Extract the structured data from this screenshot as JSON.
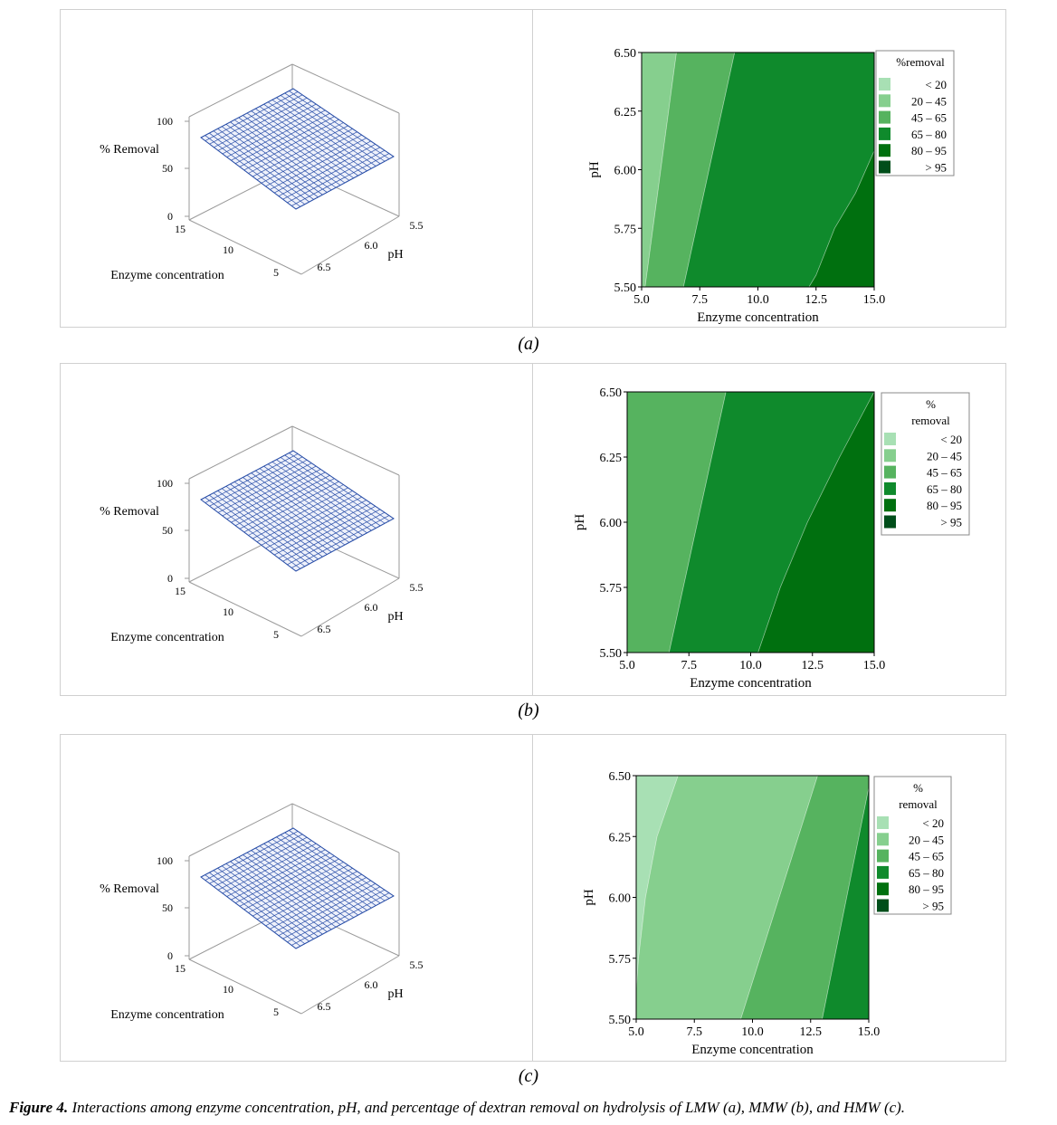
{
  "figure": {
    "caption_label": "Figure 4.",
    "caption_text": "Interactions among enzyme concentration, pH, and percentage of dextran removal on hydrolysis of LMW (a), MMW (b), and HMW (c)."
  },
  "colors": {
    "band_lt20": "#a8e0b4",
    "band_20_45": "#86cf8e",
    "band_45_65": "#56b35f",
    "band_65_80": "#0f8a2c",
    "band_80_95": "#00700f",
    "band_gt95": "#004e1a",
    "mesh": "#2a4fa8"
  },
  "chart_data": [
    {
      "panel": "(a)",
      "type": "contour",
      "surface": {
        "zlabel": "% Removal",
        "xlabel": "Enzyme concentration",
        "ylabel": "pH",
        "z_ticks": [
          "100",
          "50",
          "0"
        ],
        "x_ticks": [
          "15",
          "10",
          "5"
        ],
        "y_ticks": [
          "5.5",
          "6.0",
          "6.5"
        ]
      },
      "xlabel": "Enzyme concentration",
      "ylabel": "pH",
      "xlim": [
        5,
        15
      ],
      "ylim": [
        5.5,
        6.5
      ],
      "x_ticks": [
        "5.0",
        "7.5",
        "10.0",
        "12.5",
        "15.0"
      ],
      "y_ticks": [
        "5.50",
        "5.75",
        "6.00",
        "6.25",
        "6.50"
      ],
      "legend_title": "%removal",
      "legend": [
        "< 20",
        "20 – 45",
        "45 – 65",
        "65 – 80",
        "80 – 95",
        "> 95"
      ],
      "regions": [
        {
          "band": "20 – 45",
          "polygon": [
            [
              5,
              5.5
            ],
            [
              5.15,
              5.5
            ],
            [
              6.5,
              6.5
            ],
            [
              5,
              6.5
            ]
          ]
        },
        {
          "band": "45 – 65",
          "polygon": [
            [
              5.15,
              5.5
            ],
            [
              6.8,
              5.5
            ],
            [
              9.0,
              6.5
            ],
            [
              6.5,
              6.5
            ]
          ]
        },
        {
          "band": "65 – 80",
          "polygon": [
            [
              6.8,
              5.5
            ],
            [
              12.2,
              5.5
            ],
            [
              12.5,
              5.55
            ],
            [
              13.3,
              5.75
            ],
            [
              14.2,
              5.9
            ],
            [
              15,
              6.08
            ],
            [
              15,
              6.5
            ],
            [
              9.0,
              6.5
            ]
          ]
        },
        {
          "band": "80 – 95",
          "polygon": [
            [
              12.2,
              5.5
            ],
            [
              15,
              5.5
            ],
            [
              15,
              6.08
            ],
            [
              14.2,
              5.9
            ],
            [
              13.3,
              5.75
            ],
            [
              12.5,
              5.55
            ]
          ]
        }
      ]
    },
    {
      "panel": "(b)",
      "type": "contour",
      "surface": {
        "zlabel": "% Removal",
        "xlabel": "Enzyme concentration",
        "ylabel": "pH",
        "z_ticks": [
          "100",
          "50",
          "0"
        ],
        "x_ticks": [
          "15",
          "10",
          "5"
        ],
        "y_ticks": [
          "5.5",
          "6.0",
          "6.5"
        ]
      },
      "xlabel": "Enzyme concentration",
      "ylabel": "pH",
      "xlim": [
        5,
        15
      ],
      "ylim": [
        5.5,
        6.5
      ],
      "x_ticks": [
        "5.0",
        "7.5",
        "10.0",
        "12.5",
        "15.0"
      ],
      "y_ticks": [
        "5.50",
        "5.75",
        "6.00",
        "6.25",
        "6.50"
      ],
      "legend_title": "% removal",
      "legend": [
        "< 20",
        "20 – 45",
        "45 – 65",
        "65 – 80",
        "80 – 95",
        "> 95"
      ],
      "regions": [
        {
          "band": "45 – 65",
          "polygon": [
            [
              5,
              5.5
            ],
            [
              6.7,
              5.5
            ],
            [
              9.0,
              6.5
            ],
            [
              5,
              6.5
            ]
          ]
        },
        {
          "band": "65 – 80",
          "polygon": [
            [
              6.7,
              5.5
            ],
            [
              10.3,
              5.5
            ],
            [
              11.2,
              5.75
            ],
            [
              12.3,
              6.0
            ],
            [
              13.6,
              6.25
            ],
            [
              15,
              6.5
            ],
            [
              9.0,
              6.5
            ]
          ]
        },
        {
          "band": "80 – 95",
          "polygon": [
            [
              10.3,
              5.5
            ],
            [
              15,
              5.5
            ],
            [
              15,
              6.5
            ],
            [
              13.6,
              6.25
            ],
            [
              12.3,
              6.0
            ],
            [
              11.2,
              5.75
            ]
          ]
        }
      ]
    },
    {
      "panel": "(c)",
      "type": "contour",
      "surface": {
        "zlabel": "% Removal",
        "xlabel": "Enzyme concentration",
        "ylabel": "pH",
        "z_ticks": [
          "100",
          "50",
          "0"
        ],
        "x_ticks": [
          "15",
          "10",
          "5"
        ],
        "y_ticks": [
          "5.5",
          "6.0",
          "6.5"
        ]
      },
      "xlabel": "Enzyme concentration",
      "ylabel": "pH",
      "xlim": [
        5,
        15
      ],
      "ylim": [
        5.5,
        6.5
      ],
      "x_ticks": [
        "5.0",
        "7.5",
        "10.0",
        "12.5",
        "15.0"
      ],
      "y_ticks": [
        "5.50",
        "5.75",
        "6.00",
        "6.25",
        "6.50"
      ],
      "legend_title": "% removal",
      "legend": [
        "< 20",
        "20 – 45",
        "45 – 65",
        "65 – 80",
        "80 – 95",
        "> 95"
      ],
      "regions": [
        {
          "band": "< 20",
          "polygon": [
            [
              5,
              5.62
            ],
            [
              5.1,
              5.75
            ],
            [
              5.4,
              6.0
            ],
            [
              5.9,
              6.25
            ],
            [
              6.8,
              6.5
            ],
            [
              5,
              6.5
            ]
          ]
        },
        {
          "band": "20 – 45",
          "polygon": [
            [
              5,
              5.5
            ],
            [
              9.5,
              5.5
            ],
            [
              12.8,
              6.5
            ],
            [
              6.8,
              6.5
            ],
            [
              5.9,
              6.25
            ],
            [
              5.4,
              6.0
            ],
            [
              5.1,
              5.75
            ],
            [
              5,
              5.62
            ]
          ]
        },
        {
          "band": "45 – 65",
          "polygon": [
            [
              9.5,
              5.5
            ],
            [
              13.0,
              5.5
            ],
            [
              15,
              6.45
            ],
            [
              15,
              6.5
            ],
            [
              12.8,
              6.5
            ]
          ]
        },
        {
          "band": "65 – 80",
          "polygon": [
            [
              13.0,
              5.5
            ],
            [
              15,
              5.5
            ],
            [
              15,
              6.45
            ]
          ]
        }
      ]
    }
  ]
}
